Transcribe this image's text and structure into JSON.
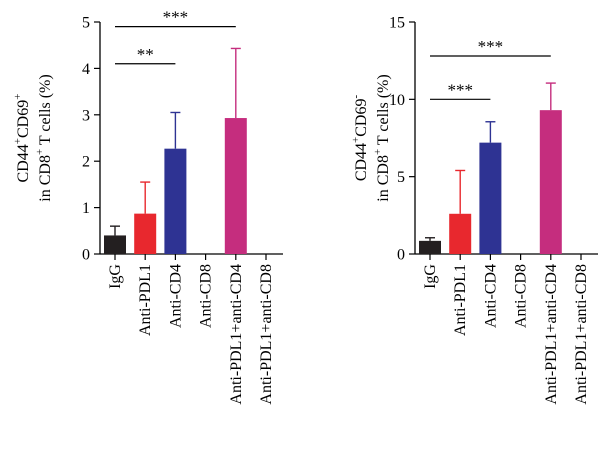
{
  "categories": [
    "IgG",
    "Anti-PDL1",
    "Anti-CD4",
    "Anti-CD8",
    "Anti-PDL1+anti-CD4",
    "Anti-PDL1+anti-CD8"
  ],
  "colors": [
    "#231f20",
    "#e8282e",
    "#2e3393",
    "#ffffff",
    "#c52d7e",
    "#ffffff"
  ],
  "chart_data": [
    {
      "type": "bar",
      "categories": [
        "IgG",
        "Anti-PDL1",
        "Anti-CD4",
        "Anti-CD8",
        "Anti-PDL1+anti-CD4",
        "Anti-PDL1+anti-CD8"
      ],
      "values": [
        0.4,
        0.87,
        2.27,
        0,
        2.93,
        0
      ],
      "error_upper": [
        0.2,
        0.68,
        0.78,
        0,
        1.5,
        0
      ],
      "ylim": [
        0,
        5
      ],
      "yticks": [
        "0",
        "1",
        "2",
        "3",
        "4",
        "5"
      ],
      "ylabel": {
        "line1": [
          "CD44",
          "+",
          "CD69",
          "+"
        ],
        "line2": [
          "in CD8",
          "+",
          " T cells (%)"
        ]
      },
      "significance": [
        {
          "from": 0,
          "to": 2,
          "y": 4.1,
          "label": "**"
        },
        {
          "from": 0,
          "to": 4,
          "y": 4.9,
          "label": "***"
        }
      ]
    },
    {
      "type": "bar",
      "categories": [
        "IgG",
        "Anti-PDL1",
        "Anti-CD4",
        "Anti-CD8",
        "Anti-PDL1+anti-CD4",
        "Anti-PDL1+anti-CD8"
      ],
      "values": [
        0.85,
        2.6,
        7.2,
        0,
        9.3,
        0
      ],
      "error_upper": [
        0.2,
        2.8,
        1.35,
        0,
        1.75,
        0
      ],
      "ylim": [
        0,
        15
      ],
      "yticks": [
        "0",
        "5",
        "10",
        "15"
      ],
      "ylabel": {
        "line1": [
          "CD44",
          "+",
          "CD69",
          "-"
        ],
        "line2": [
          "in CD8",
          "+",
          " T cells (%)"
        ]
      },
      "significance": [
        {
          "from": 0,
          "to": 2,
          "y": 10.0,
          "label": "***"
        },
        {
          "from": 0,
          "to": 4,
          "y": 12.8,
          "label": "***"
        }
      ]
    }
  ]
}
